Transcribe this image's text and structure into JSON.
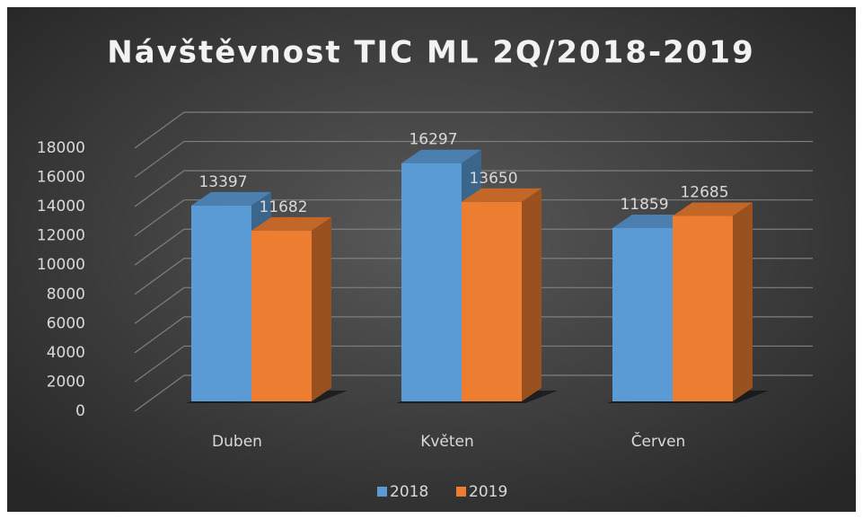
{
  "chart_data": {
    "type": "bar3d",
    "title": "Návštěvnost TIC ML 2Q/2018-2019",
    "categories": [
      "Duben",
      "Květen",
      "Červen"
    ],
    "series": [
      {
        "name": "2018",
        "color": "#5b9bd5",
        "values": [
          13397,
          16297,
          11859
        ]
      },
      {
        "name": "2019",
        "color": "#ed7d31",
        "values": [
          11682,
          13650,
          12685
        ]
      }
    ],
    "ylim": [
      0,
      18000
    ],
    "yticks": [
      0,
      2000,
      4000,
      6000,
      8000,
      10000,
      12000,
      14000,
      16000,
      18000
    ],
    "grid": true,
    "legend": "bottom",
    "data_labels": true
  }
}
